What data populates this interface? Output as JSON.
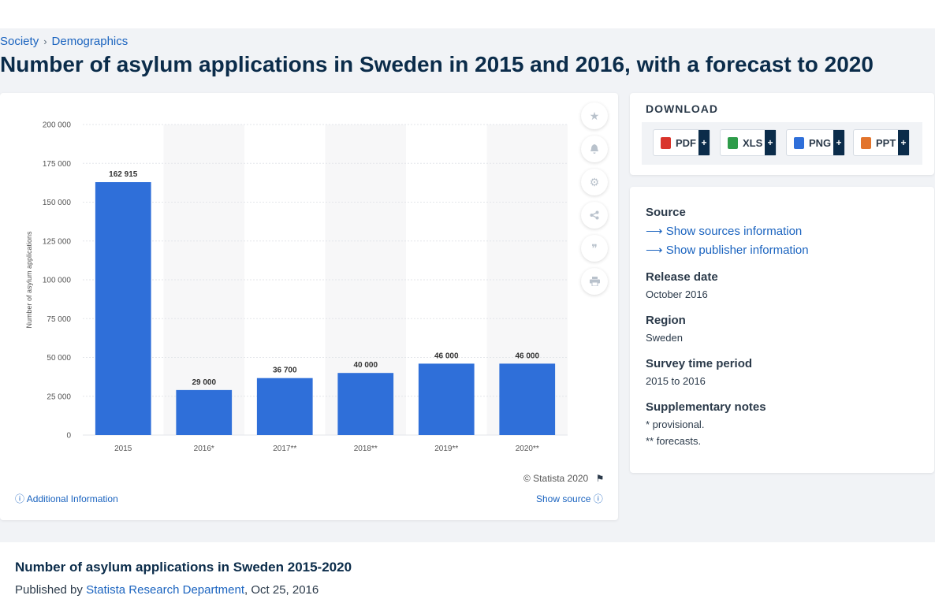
{
  "breadcrumb": [
    "Society",
    "Demographics"
  ],
  "page_title": "Number of asylum applications in Sweden in 2015 and 2016, with a forecast to 2020",
  "chart_data": {
    "type": "bar",
    "title": "",
    "categories": [
      "2015",
      "2016*",
      "2017**",
      "2018**",
      "2019**",
      "2020**"
    ],
    "values": [
      162915,
      29000,
      36700,
      40000,
      46000,
      46000
    ],
    "value_labels": [
      "162 915",
      "29 000",
      "36 700",
      "40 000",
      "46 000",
      "46 000"
    ],
    "xlabel": "",
    "ylabel": "Number of asylum applications",
    "ylim": [
      0,
      200000
    ],
    "yticks": [
      0,
      25000,
      50000,
      75000,
      100000,
      125000,
      150000,
      175000,
      200000
    ],
    "ytick_labels": [
      "0",
      "25 000",
      "50 000",
      "75 000",
      "100 000",
      "125 000",
      "150 000",
      "175 000",
      "200 000"
    ],
    "bar_color": "#2f6fd9",
    "grid": true
  },
  "chart_footer": {
    "copyright": "© Statista 2020",
    "additional_info": "Additional Information",
    "show_source": "Show source"
  },
  "tools": [
    "star-icon",
    "bell-icon",
    "gear-icon",
    "share-icon",
    "quote-icon",
    "print-icon"
  ],
  "download": {
    "title": "DOWNLOAD",
    "buttons": [
      {
        "label": "PDF",
        "color": "#d9342b"
      },
      {
        "label": "XLS",
        "color": "#2e9c4a"
      },
      {
        "label": "PNG",
        "color": "#2f6fd9"
      },
      {
        "label": "PPT",
        "color": "#e2742c"
      }
    ],
    "plus": "+"
  },
  "info": {
    "source_label": "Source",
    "show_sources": "Show sources information",
    "show_publisher": "Show publisher information",
    "release_label": "Release date",
    "release_value": "October 2016",
    "region_label": "Region",
    "region_value": "Sweden",
    "survey_label": "Survey time period",
    "survey_value": "2015 to 2016",
    "notes_label": "Supplementary notes",
    "notes": [
      "* provisional.",
      "** forecasts."
    ]
  },
  "bottom": {
    "title": "Number of asylum applications in Sweden 2015-2020",
    "published_by": "Published by",
    "publisher": "Statista Research Department",
    "date": ", Oct 25, 2016"
  }
}
